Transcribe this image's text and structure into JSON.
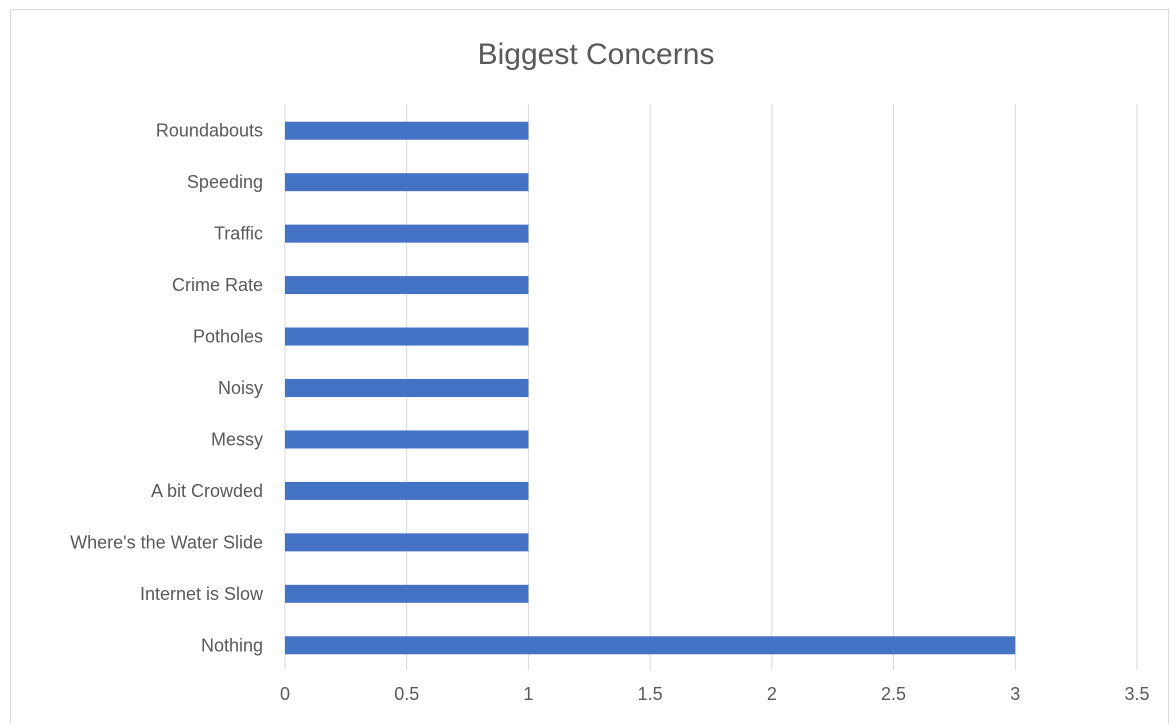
{
  "chart_data": {
    "type": "bar",
    "orientation": "horizontal",
    "title": "Biggest Concerns",
    "categories": [
      "Roundabouts",
      "Speeding",
      "Traffic",
      "Crime Rate",
      "Potholes",
      "Noisy",
      "Messy",
      "A bit Crowded",
      "Where's the Water Slide",
      "Internet is Slow",
      "Nothing"
    ],
    "values": [
      1,
      1,
      1,
      1,
      1,
      1,
      1,
      1,
      1,
      1,
      3
    ],
    "xlim": [
      0,
      3.5
    ],
    "xticks": [
      "0",
      "0.5",
      "1",
      "1.5",
      "2",
      "2.5",
      "3",
      "3.5"
    ],
    "grid": true,
    "legend": "none",
    "bar_color": "#4472c4"
  }
}
